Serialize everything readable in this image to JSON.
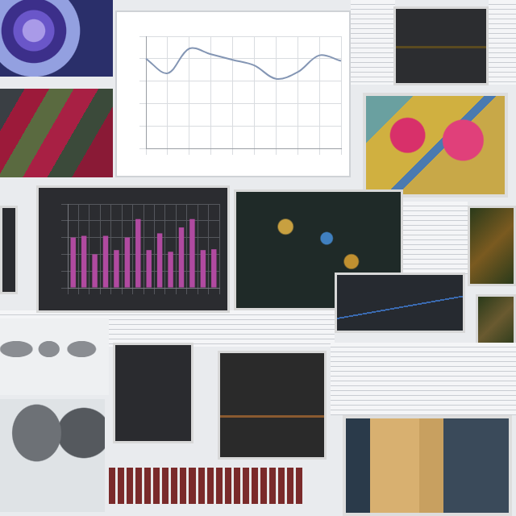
{
  "chart_data": [
    {
      "type": "line",
      "categories": [
        null,
        null,
        null,
        null,
        null,
        null,
        null,
        null,
        null,
        null
      ],
      "values": [
        80,
        67,
        89,
        84,
        79,
        74,
        62,
        68,
        83,
        78
      ],
      "color": "#8496b4",
      "ylim": [
        0,
        100
      ],
      "yticks": [
        0,
        20,
        40,
        60,
        80,
        100
      ],
      "grid": true,
      "tick_labels": false
    },
    {
      "type": "bar",
      "categories": [
        null,
        null,
        null,
        null,
        null,
        null,
        null,
        null,
        null,
        null,
        null,
        null,
        null,
        null
      ],
      "values": [
        60,
        62,
        40,
        62,
        45,
        60,
        82,
        45,
        65,
        43,
        72,
        82,
        45,
        46
      ],
      "color": "#b04aa0",
      "ylim": [
        0,
        100
      ],
      "yticks": [
        0,
        20,
        40,
        60,
        80,
        100
      ],
      "grid": true,
      "tick_labels": false
    }
  ]
}
